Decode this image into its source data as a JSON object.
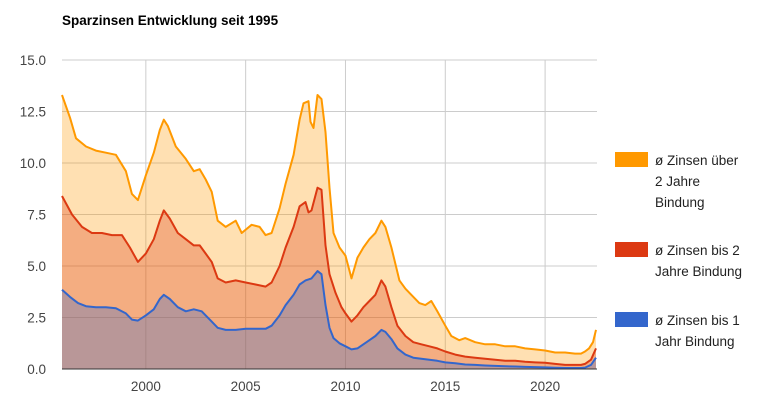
{
  "chart_data": {
    "type": "area",
    "title": "Sparzinsen Entwicklung seit 1995",
    "xlabel": "",
    "ylabel": "",
    "xlim": [
      1995.8,
      2022.6
    ],
    "ylim": [
      0,
      15
    ],
    "x_ticks": [
      2000,
      2005,
      2010,
      2015,
      2020
    ],
    "x_tick_labels": [
      "2000",
      "2005",
      "2010",
      "2015",
      "2020"
    ],
    "y_ticks": [
      0,
      2.5,
      5,
      7.5,
      10,
      12.5,
      15
    ],
    "y_tick_labels": [
      "0.0",
      "2.5",
      "5.0",
      "7.5",
      "10.0",
      "12.5",
      "15.0"
    ],
    "grid": true,
    "legend_position": "right",
    "stacked": false,
    "series": [
      {
        "name": "ø Zinsen über 2 Jahre Bindung",
        "color": "#ff9900",
        "points": [
          [
            1995.8,
            13.3
          ],
          [
            1996.2,
            12.2
          ],
          [
            1996.5,
            11.2
          ],
          [
            1997.0,
            10.8
          ],
          [
            1997.5,
            10.6
          ],
          [
            1998.0,
            10.5
          ],
          [
            1998.5,
            10.4
          ],
          [
            1999.0,
            9.6
          ],
          [
            1999.3,
            8.5
          ],
          [
            1999.6,
            8.2
          ],
          [
            2000.0,
            9.4
          ],
          [
            2000.4,
            10.5
          ],
          [
            2000.7,
            11.6
          ],
          [
            2000.9,
            12.1
          ],
          [
            2001.1,
            11.8
          ],
          [
            2001.5,
            10.8
          ],
          [
            2002.0,
            10.2
          ],
          [
            2002.4,
            9.6
          ],
          [
            2002.7,
            9.7
          ],
          [
            2003.0,
            9.2
          ],
          [
            2003.3,
            8.6
          ],
          [
            2003.6,
            7.2
          ],
          [
            2004.0,
            6.9
          ],
          [
            2004.5,
            7.2
          ],
          [
            2004.8,
            6.6
          ],
          [
            2005.3,
            7.0
          ],
          [
            2005.7,
            6.9
          ],
          [
            2006.0,
            6.5
          ],
          [
            2006.3,
            6.6
          ],
          [
            2006.7,
            7.8
          ],
          [
            2007.0,
            9.0
          ],
          [
            2007.4,
            10.4
          ],
          [
            2007.7,
            12.1
          ],
          [
            2007.9,
            12.9
          ],
          [
            2008.15,
            13.0
          ],
          [
            2008.25,
            12.0
          ],
          [
            2008.4,
            11.7
          ],
          [
            2008.6,
            13.3
          ],
          [
            2008.8,
            13.1
          ],
          [
            2009.0,
            11.5
          ],
          [
            2009.2,
            8.8
          ],
          [
            2009.4,
            6.6
          ],
          [
            2009.7,
            5.9
          ],
          [
            2010.0,
            5.5
          ],
          [
            2010.3,
            4.4
          ],
          [
            2010.6,
            5.4
          ],
          [
            2010.9,
            5.9
          ],
          [
            2011.2,
            6.3
          ],
          [
            2011.5,
            6.6
          ],
          [
            2011.8,
            7.2
          ],
          [
            2012.0,
            6.9
          ],
          [
            2012.3,
            5.9
          ],
          [
            2012.7,
            4.3
          ],
          [
            2013.0,
            3.9
          ],
          [
            2013.3,
            3.6
          ],
          [
            2013.7,
            3.2
          ],
          [
            2014.0,
            3.1
          ],
          [
            2014.3,
            3.3
          ],
          [
            2014.6,
            2.8
          ],
          [
            2015.0,
            2.1
          ],
          [
            2015.3,
            1.6
          ],
          [
            2015.7,
            1.4
          ],
          [
            2016.0,
            1.5
          ],
          [
            2016.5,
            1.3
          ],
          [
            2017.0,
            1.2
          ],
          [
            2017.5,
            1.2
          ],
          [
            2018.0,
            1.1
          ],
          [
            2018.5,
            1.1
          ],
          [
            2019.0,
            1.0
          ],
          [
            2019.5,
            0.95
          ],
          [
            2020.0,
            0.9
          ],
          [
            2020.5,
            0.8
          ],
          [
            2021.0,
            0.8
          ],
          [
            2021.5,
            0.75
          ],
          [
            2021.8,
            0.75
          ],
          [
            2022.0,
            0.85
          ],
          [
            2022.2,
            1.0
          ],
          [
            2022.4,
            1.3
          ],
          [
            2022.55,
            1.9
          ]
        ]
      },
      {
        "name": "ø Zinsen bis 2 Jahre Bindung",
        "color": "#dc3912",
        "points": [
          [
            1995.8,
            8.4
          ],
          [
            1996.3,
            7.5
          ],
          [
            1996.8,
            6.9
          ],
          [
            1997.3,
            6.6
          ],
          [
            1997.8,
            6.6
          ],
          [
            1998.3,
            6.5
          ],
          [
            1998.8,
            6.5
          ],
          [
            1999.2,
            5.9
          ],
          [
            1999.6,
            5.2
          ],
          [
            2000.0,
            5.6
          ],
          [
            2000.4,
            6.3
          ],
          [
            2000.7,
            7.2
          ],
          [
            2000.9,
            7.7
          ],
          [
            2001.2,
            7.3
          ],
          [
            2001.6,
            6.6
          ],
          [
            2002.0,
            6.3
          ],
          [
            2002.4,
            6.0
          ],
          [
            2002.7,
            6.0
          ],
          [
            2003.0,
            5.6
          ],
          [
            2003.3,
            5.2
          ],
          [
            2003.6,
            4.4
          ],
          [
            2004.0,
            4.2
          ],
          [
            2004.5,
            4.3
          ],
          [
            2005.0,
            4.2
          ],
          [
            2005.5,
            4.1
          ],
          [
            2006.0,
            4.0
          ],
          [
            2006.3,
            4.2
          ],
          [
            2006.7,
            5.0
          ],
          [
            2007.0,
            5.9
          ],
          [
            2007.4,
            6.9
          ],
          [
            2007.7,
            7.9
          ],
          [
            2008.0,
            8.1
          ],
          [
            2008.15,
            7.6
          ],
          [
            2008.3,
            7.7
          ],
          [
            2008.6,
            8.8
          ],
          [
            2008.8,
            8.7
          ],
          [
            2009.0,
            6.0
          ],
          [
            2009.2,
            4.6
          ],
          [
            2009.5,
            3.7
          ],
          [
            2009.8,
            3.0
          ],
          [
            2010.0,
            2.7
          ],
          [
            2010.3,
            2.3
          ],
          [
            2010.6,
            2.6
          ],
          [
            2010.9,
            3.0
          ],
          [
            2011.2,
            3.3
          ],
          [
            2011.5,
            3.6
          ],
          [
            2011.8,
            4.3
          ],
          [
            2012.0,
            4.0
          ],
          [
            2012.3,
            3.0
          ],
          [
            2012.6,
            2.1
          ],
          [
            2013.0,
            1.6
          ],
          [
            2013.4,
            1.3
          ],
          [
            2013.8,
            1.2
          ],
          [
            2014.2,
            1.1
          ],
          [
            2014.6,
            1.0
          ],
          [
            2015.0,
            0.85
          ],
          [
            2015.5,
            0.7
          ],
          [
            2016.0,
            0.6
          ],
          [
            2016.5,
            0.55
          ],
          [
            2017.0,
            0.5
          ],
          [
            2017.5,
            0.45
          ],
          [
            2018.0,
            0.4
          ],
          [
            2018.5,
            0.4
          ],
          [
            2019.0,
            0.35
          ],
          [
            2019.5,
            0.32
          ],
          [
            2020.0,
            0.3
          ],
          [
            2020.5,
            0.25
          ],
          [
            2021.0,
            0.2
          ],
          [
            2021.5,
            0.2
          ],
          [
            2021.8,
            0.2
          ],
          [
            2022.0,
            0.25
          ],
          [
            2022.3,
            0.45
          ],
          [
            2022.55,
            1.0
          ]
        ]
      },
      {
        "name": "ø Zinsen bis 1 Jahr Bindung",
        "color": "#3366cc",
        "points": [
          [
            1995.8,
            3.85
          ],
          [
            1996.2,
            3.5
          ],
          [
            1996.6,
            3.2
          ],
          [
            1997.0,
            3.05
          ],
          [
            1997.5,
            3.0
          ],
          [
            1998.0,
            3.0
          ],
          [
            1998.5,
            2.95
          ],
          [
            1999.0,
            2.7
          ],
          [
            1999.3,
            2.4
          ],
          [
            1999.6,
            2.35
          ],
          [
            2000.0,
            2.6
          ],
          [
            2000.4,
            2.9
          ],
          [
            2000.7,
            3.4
          ],
          [
            2000.9,
            3.6
          ],
          [
            2001.2,
            3.4
          ],
          [
            2001.6,
            3.0
          ],
          [
            2002.0,
            2.8
          ],
          [
            2002.4,
            2.9
          ],
          [
            2002.8,
            2.8
          ],
          [
            2003.0,
            2.6
          ],
          [
            2003.3,
            2.3
          ],
          [
            2003.6,
            2.0
          ],
          [
            2004.0,
            1.9
          ],
          [
            2004.5,
            1.9
          ],
          [
            2005.0,
            1.95
          ],
          [
            2005.5,
            1.95
          ],
          [
            2006.0,
            1.95
          ],
          [
            2006.3,
            2.1
          ],
          [
            2006.7,
            2.6
          ],
          [
            2007.0,
            3.1
          ],
          [
            2007.4,
            3.6
          ],
          [
            2007.7,
            4.1
          ],
          [
            2008.0,
            4.3
          ],
          [
            2008.3,
            4.4
          ],
          [
            2008.6,
            4.75
          ],
          [
            2008.8,
            4.6
          ],
          [
            2009.0,
            3.1
          ],
          [
            2009.2,
            2.0
          ],
          [
            2009.4,
            1.5
          ],
          [
            2009.7,
            1.25
          ],
          [
            2010.0,
            1.1
          ],
          [
            2010.3,
            0.95
          ],
          [
            2010.6,
            1.0
          ],
          [
            2010.9,
            1.2
          ],
          [
            2011.2,
            1.4
          ],
          [
            2011.5,
            1.6
          ],
          [
            2011.8,
            1.9
          ],
          [
            2012.0,
            1.8
          ],
          [
            2012.3,
            1.45
          ],
          [
            2012.6,
            1.0
          ],
          [
            2013.0,
            0.7
          ],
          [
            2013.4,
            0.55
          ],
          [
            2013.8,
            0.5
          ],
          [
            2014.2,
            0.45
          ],
          [
            2014.6,
            0.4
          ],
          [
            2015.0,
            0.32
          ],
          [
            2015.5,
            0.28
          ],
          [
            2016.0,
            0.22
          ],
          [
            2016.5,
            0.2
          ],
          [
            2017.0,
            0.17
          ],
          [
            2017.5,
            0.15
          ],
          [
            2018.0,
            0.13
          ],
          [
            2018.5,
            0.12
          ],
          [
            2019.0,
            0.1
          ],
          [
            2019.5,
            0.09
          ],
          [
            2020.0,
            0.08
          ],
          [
            2020.5,
            0.06
          ],
          [
            2021.0,
            0.05
          ],
          [
            2021.5,
            0.05
          ],
          [
            2021.8,
            0.05
          ],
          [
            2022.0,
            0.07
          ],
          [
            2022.3,
            0.2
          ],
          [
            2022.55,
            0.55
          ]
        ]
      }
    ]
  }
}
